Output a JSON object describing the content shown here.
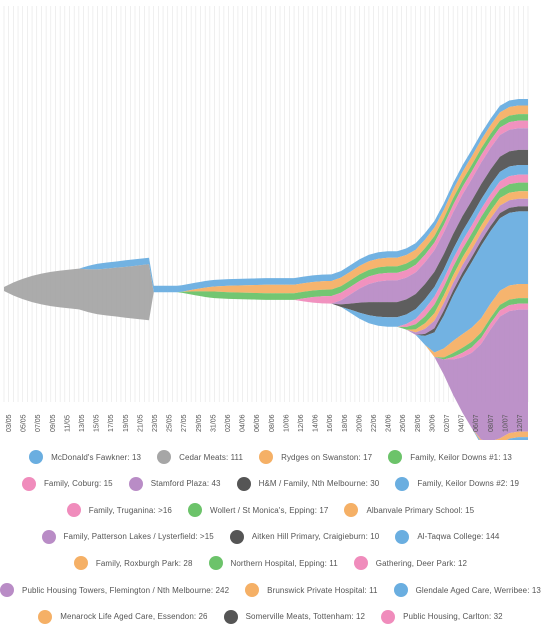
{
  "chart_data": {
    "type": "area",
    "title": "",
    "xlabel": "",
    "ylabel": "",
    "stack": "centered-streamgraph",
    "grid": true,
    "legend_position": "bottom",
    "x_start": "03/05",
    "x_tick_labels": [
      "03/05",
      "05/05",
      "07/05",
      "09/05",
      "11/05",
      "13/05",
      "15/05",
      "17/05",
      "19/05",
      "21/05",
      "23/05",
      "25/05",
      "27/05",
      "29/05",
      "31/05",
      "02/06",
      "04/06",
      "06/06",
      "08/06",
      "10/06",
      "12/06",
      "14/06",
      "16/06",
      "18/06",
      "20/06",
      "22/06",
      "24/06",
      "26/06",
      "28/06",
      "30/06",
      "02/07",
      "04/07",
      "06/07",
      "08/07",
      "10/07",
      "12/07"
    ],
    "series": [
      {
        "name": "McDonald's Fawkner: 13",
        "color": "#6aaee0",
        "legend_label": "McDonald's Fawkner: 13",
        "points": [
          [
            16,
            0
          ],
          [
            18,
            7
          ],
          [
            20,
            11
          ],
          [
            22,
            12
          ],
          [
            24,
            12
          ],
          [
            26,
            13
          ],
          [
            28,
            13
          ],
          [
            30,
            13
          ]
        ]
      },
      {
        "name": "Cedar Meats: 111",
        "color": "#a6a6a6",
        "legend_label": "Cedar Meats: 111",
        "points": [
          [
            0,
            8
          ],
          [
            2,
            26
          ],
          [
            4,
            40
          ],
          [
            6,
            52
          ],
          [
            8,
            61
          ],
          [
            10,
            68
          ],
          [
            12,
            73
          ],
          [
            14,
            77
          ],
          [
            16,
            81
          ],
          [
            18,
            85
          ],
          [
            20,
            89
          ],
          [
            22,
            93
          ],
          [
            24,
            97
          ],
          [
            26,
            101
          ],
          [
            28,
            105
          ],
          [
            30,
            109
          ],
          [
            31,
            111
          ],
          [
            32,
            0
          ]
        ]
      },
      {
        "name": "Rydges on Swanston: 17",
        "color": "#f5b066",
        "legend_label": "Rydges on Swanston: 17",
        "points": [
          [
            38,
            0
          ],
          [
            40,
            3
          ],
          [
            42,
            6
          ],
          [
            44,
            9
          ],
          [
            46,
            11
          ],
          [
            48,
            13
          ],
          [
            50,
            14
          ],
          [
            52,
            15
          ],
          [
            54,
            16
          ],
          [
            56,
            17
          ],
          [
            58,
            17
          ],
          [
            60,
            17
          ],
          [
            62,
            17
          ],
          [
            64,
            17
          ],
          [
            66,
            17
          ],
          [
            68,
            17
          ],
          [
            70,
            17
          ]
        ]
      },
      {
        "name": "Family, Keilor Downs #1: 13",
        "color": "#6cc36a",
        "legend_label": "Family, Keilor Downs #1: 13",
        "points": [
          [
            37,
            0
          ],
          [
            39,
            4
          ],
          [
            41,
            8
          ],
          [
            43,
            11
          ],
          [
            45,
            13
          ]
        ]
      },
      {
        "name": "Family, Coburg: 15",
        "color": "#f08cbc",
        "legend_label": "Family, Coburg: 15",
        "points": [
          [
            62,
            0
          ],
          [
            64,
            6
          ],
          [
            66,
            11
          ],
          [
            68,
            14
          ],
          [
            70,
            15
          ]
        ]
      },
      {
        "name": "Stamford Plaza: 43",
        "color": "#b98cc6",
        "legend_label": "Stamford Plaza: 43",
        "points": [
          [
            70,
            0
          ],
          [
            72,
            8
          ],
          [
            74,
            18
          ],
          [
            76,
            28
          ],
          [
            78,
            36
          ],
          [
            80,
            41
          ],
          [
            82,
            43
          ]
        ]
      },
      {
        "name": "H&M / Family, Nth Melbourne: 30",
        "color": "#555555",
        "legend_label": "H&M / Family, Nth Melbourne: 30",
        "points": [
          [
            70,
            0
          ],
          [
            72,
            5
          ],
          [
            74,
            12
          ],
          [
            76,
            20
          ],
          [
            78,
            26
          ],
          [
            80,
            29
          ],
          [
            82,
            30
          ]
        ]
      },
      {
        "name": "Family, Keilor Downs #2: 19",
        "color": "#6aaee0",
        "legend_label": "Family, Keilor Downs #2: 19",
        "points": [
          [
            72,
            0
          ],
          [
            74,
            6
          ],
          [
            76,
            12
          ],
          [
            78,
            16
          ],
          [
            80,
            18
          ],
          [
            82,
            19
          ]
        ]
      },
      {
        "name": "Family, Truganina: >16",
        "color": "#f08cbc",
        "legend_label": "Family, Truganina: >16",
        "points": [
          [
            84,
            0
          ],
          [
            86,
            6
          ],
          [
            88,
            11
          ],
          [
            90,
            15
          ],
          [
            92,
            16
          ]
        ]
      },
      {
        "name": "Wollert / St Monica's, Epping: 17",
        "color": "#6cc36a",
        "legend_label": "Wollert / St Monica's, Epping: 17",
        "points": [
          [
            84,
            0
          ],
          [
            86,
            5
          ],
          [
            88,
            10
          ],
          [
            90,
            14
          ],
          [
            92,
            17
          ]
        ]
      },
      {
        "name": "Albanvale Primary School: 15",
        "color": "#f5b066",
        "legend_label": "Albanvale Primary School: 15",
        "points": [
          [
            86,
            0
          ],
          [
            88,
            6
          ],
          [
            90,
            11
          ],
          [
            92,
            15
          ]
        ]
      },
      {
        "name": "Family, Patterson Lakes / Lysterfield: >15",
        "color": "#b98cc6",
        "legend_label": "Family, Patterson Lakes / Lysterfield: >15",
        "points": [
          [
            86,
            0
          ],
          [
            88,
            5
          ],
          [
            90,
            10
          ],
          [
            92,
            15
          ]
        ]
      },
      {
        "name": "Aitken Hill Primary, Craigieburn: 10",
        "color": "#555555",
        "legend_label": "Aitken Hill Primary, Craigieburn: 10",
        "points": [
          [
            88,
            0
          ],
          [
            90,
            4
          ],
          [
            92,
            8
          ],
          [
            94,
            10
          ]
        ]
      },
      {
        "name": "Al-Taqwa College: 144",
        "color": "#6aaee0",
        "legend_label": "Al-Taqwa College: 144",
        "points": [
          [
            88,
            0
          ],
          [
            90,
            18
          ],
          [
            92,
            40
          ],
          [
            94,
            65
          ],
          [
            96,
            90
          ],
          [
            98,
            112
          ],
          [
            100,
            130
          ],
          [
            102,
            144
          ]
        ]
      },
      {
        "name": "Family, Roxburgh Park: 28",
        "color": "#f5b066",
        "legend_label": "Family, Roxburgh Park: 28",
        "points": [
          [
            90,
            0
          ],
          [
            92,
            9
          ],
          [
            94,
            18
          ],
          [
            96,
            24
          ],
          [
            98,
            27
          ],
          [
            100,
            28
          ]
        ]
      },
      {
        "name": "Northern Hospital, Epping: 11",
        "color": "#6cc36a",
        "legend_label": "Northern Hospital, Epping: 11",
        "points": [
          [
            92,
            0
          ],
          [
            94,
            4
          ],
          [
            96,
            8
          ],
          [
            98,
            10
          ],
          [
            100,
            11
          ]
        ]
      },
      {
        "name": "Gathering, Deer Park: 12",
        "color": "#f08cbc",
        "legend_label": "Gathering, Deer Park: 12",
        "points": [
          [
            94,
            0
          ],
          [
            96,
            5
          ],
          [
            98,
            9
          ],
          [
            100,
            11
          ],
          [
            102,
            12
          ]
        ]
      },
      {
        "name": "Public Housing Towers, Flemington / Nth Melbourne: 242",
        "color": "#b98cc6",
        "legend_label": "Public Housing Towers, Flemington / Nth Melbourne: 242",
        "points": [
          [
            92,
            0
          ],
          [
            94,
            30
          ],
          [
            96,
            70
          ],
          [
            98,
            110
          ],
          [
            100,
            150
          ],
          [
            102,
            190
          ],
          [
            104,
            222
          ],
          [
            106,
            242
          ]
        ]
      },
      {
        "name": "Brunswick Private Hospital: 11",
        "color": "#f5b066",
        "legend_label": "Brunswick Private Hospital: 11",
        "points": [
          [
            100,
            0
          ],
          [
            102,
            5
          ],
          [
            104,
            9
          ],
          [
            106,
            11
          ]
        ]
      },
      {
        "name": "Glendale Aged Care, Werribee: 13",
        "color": "#6aaee0",
        "legend_label": "Glendale Aged Care, Werribee: 13",
        "points": [
          [
            100,
            0
          ],
          [
            102,
            5
          ],
          [
            104,
            10
          ],
          [
            106,
            13
          ]
        ]
      },
      {
        "name": "Menarock Life Aged Care, Essendon: 26",
        "color": "#f5b066",
        "legend_label": "Menarock Life Aged Care, Essendon: 26",
        "points": [
          [
            102,
            0
          ],
          [
            104,
            12
          ],
          [
            106,
            20
          ],
          [
            108,
            26
          ]
        ]
      },
      {
        "name": "Somerville Meats, Tottenham: 12",
        "color": "#555555",
        "legend_label": "Somerville Meats, Tottenham: 12",
        "points": [
          [
            102,
            0
          ],
          [
            104,
            5
          ],
          [
            106,
            9
          ],
          [
            108,
            12
          ]
        ]
      },
      {
        "name": "Public Housing, Carlton: 32",
        "color": "#f08cbc",
        "legend_label": "Public Housing, Carlton: 32",
        "points": [
          [
            104,
            0
          ],
          [
            106,
            14
          ],
          [
            108,
            26
          ],
          [
            110,
            32
          ]
        ]
      }
    ],
    "legend_rows": [
      [
        0,
        1,
        2,
        3
      ],
      [
        4,
        5,
        6,
        7
      ],
      [
        8,
        9,
        10
      ],
      [
        11,
        12,
        13
      ],
      [
        14,
        15,
        16
      ],
      [
        17,
        18,
        19
      ],
      [
        20,
        21,
        22
      ]
    ]
  }
}
